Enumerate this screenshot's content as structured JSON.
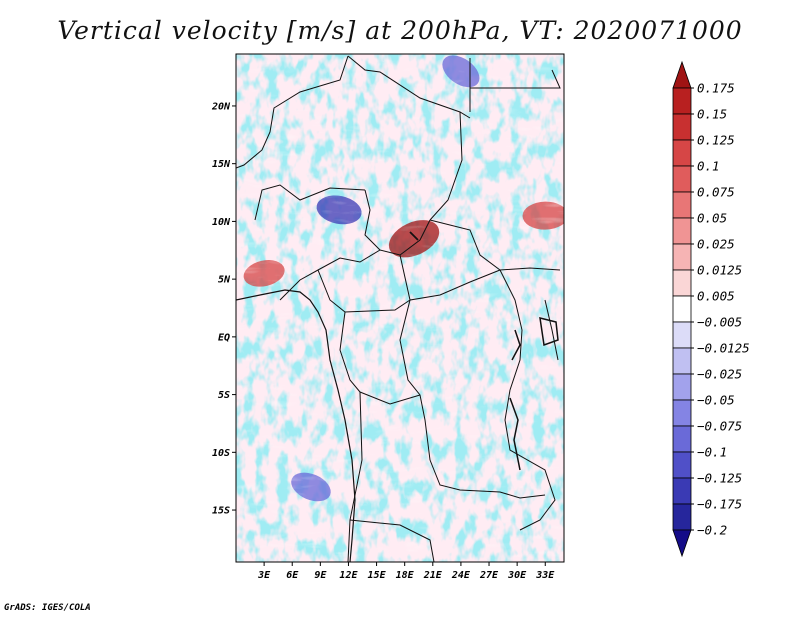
{
  "title": "Vertical velocity [m/s] at 200hPa, VT: 2020071000",
  "footer": "GrADS: IGES/COLA",
  "chart_data": {
    "type": "heatmap",
    "title": "Vertical velocity [m/s] at 200hPa, VT: 2020071000",
    "variable": "Vertical velocity",
    "units": "m/s",
    "level": "200hPa",
    "valid_time": "2020071000",
    "lon_range": [
      0,
      35
    ],
    "lat_range": [
      -19.5,
      24.5
    ],
    "x_ticks": [
      {
        "lon": 3,
        "label": "3E"
      },
      {
        "lon": 6,
        "label": "6E"
      },
      {
        "lon": 9,
        "label": "9E"
      },
      {
        "lon": 12,
        "label": "12E"
      },
      {
        "lon": 15,
        "label": "15E"
      },
      {
        "lon": 18,
        "label": "18E"
      },
      {
        "lon": 21,
        "label": "21E"
      },
      {
        "lon": 24,
        "label": "24E"
      },
      {
        "lon": 27,
        "label": "27E"
      },
      {
        "lon": 30,
        "label": "30E"
      },
      {
        "lon": 33,
        "label": "33E"
      }
    ],
    "y_ticks": [
      {
        "lat": 20,
        "label": "20N"
      },
      {
        "lat": 15,
        "label": "15N"
      },
      {
        "lat": 10,
        "label": "10N"
      },
      {
        "lat": 5,
        "label": "5N"
      },
      {
        "lat": 0,
        "label": "EQ"
      },
      {
        "lat": -5,
        "label": "5S"
      },
      {
        "lat": -10,
        "label": "10S"
      },
      {
        "lat": -15,
        "label": "15S"
      }
    ],
    "colorbar": {
      "labels": [
        "0.175",
        "0.15",
        "0.125",
        "0.1",
        "0.075",
        "0.05",
        "0.025",
        "0.0125",
        "0.005",
        "−0.005",
        "−0.0125",
        "−0.025",
        "−0.05",
        "−0.075",
        "−0.1",
        "−0.125",
        "−0.175",
        "−0.2"
      ],
      "colors": [
        "#a01414",
        "#b82020",
        "#c83030",
        "#d64646",
        "#e05c5c",
        "#e87676",
        "#f09494",
        "#f6b4b4",
        "#fad6d6",
        "#ffffff",
        "#dcdcf8",
        "#c0c0f2",
        "#a2a2ec",
        "#8484e4",
        "#6a6ad8",
        "#5050c8",
        "#3a3ab4",
        "#26269c",
        "#140c88"
      ]
    },
    "features": [
      {
        "name": "upward-motion-core-central-africa",
        "lon": 19,
        "lat": 8.5,
        "value": 0.175
      },
      {
        "name": "upward-motion-gulf-of-guinea",
        "lon": 3,
        "lat": 5.5,
        "value": 0.1
      },
      {
        "name": "upward-motion-ethiopian-highlands",
        "lon": 33,
        "lat": 10.5,
        "value": 0.125
      },
      {
        "name": "downward-motion-lake-chad-region",
        "lon": 11,
        "lat": 11,
        "value": -0.125
      },
      {
        "name": "downward-motion-southern-atlantic",
        "lon": 8,
        "lat": -13,
        "value": -0.1
      },
      {
        "name": "downward-motion-northern-sahara",
        "lon": 24,
        "lat": 23,
        "value": -0.1
      }
    ]
  }
}
